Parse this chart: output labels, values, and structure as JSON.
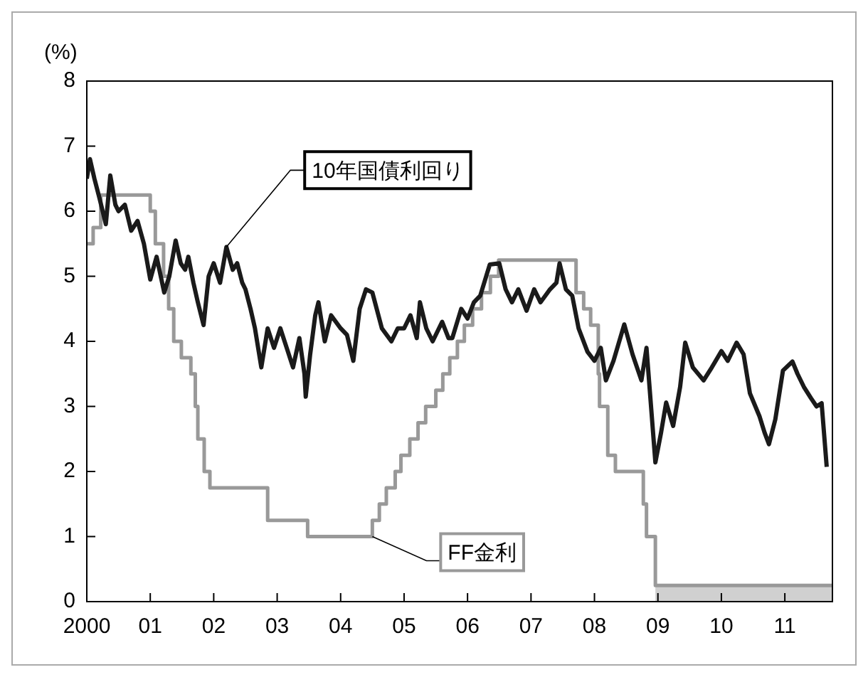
{
  "chart_data": {
    "type": "line",
    "ylabel": "(%)",
    "xlim": [
      2000,
      2011.75
    ],
    "ylim": [
      0,
      8
    ],
    "xticks": [
      {
        "value": 2000,
        "label": "2000"
      },
      {
        "value": 2001,
        "label": "01"
      },
      {
        "value": 2002,
        "label": "02"
      },
      {
        "value": 2003,
        "label": "03"
      },
      {
        "value": 2004,
        "label": "04"
      },
      {
        "value": 2005,
        "label": "05"
      },
      {
        "value": 2006,
        "label": "06"
      },
      {
        "value": 2007,
        "label": "07"
      },
      {
        "value": 2008,
        "label": "08"
      },
      {
        "value": 2009,
        "label": "09"
      },
      {
        "value": 2010,
        "label": "10"
      },
      {
        "value": 2011,
        "label": "11"
      }
    ],
    "yticks": [
      0,
      1,
      2,
      3,
      4,
      5,
      6,
      7,
      8
    ],
    "grid": false,
    "legend": false,
    "annotations": [
      {
        "text": "10年国債利回り",
        "x": 2002.2,
        "y": 5.45
      },
      {
        "text": "FF金利",
        "x": 2004.5,
        "y": 1.0
      }
    ],
    "series": [
      {
        "type": "line",
        "color": "#1a1a1a",
        "x": [
          2000,
          2000.05,
          2000.12,
          2000.2,
          2000.3,
          2000.37,
          2000.45,
          2000.5,
          2000.6,
          2000.7,
          2000.8,
          2000.9,
          2001,
          2001.1,
          2001.22,
          2001.3,
          2001.4,
          2001.48,
          2001.55,
          2001.6,
          2001.68,
          2001.75,
          2001.84,
          2001.92,
          2002,
          2002.1,
          2002.2,
          2002.3,
          2002.37,
          2002.45,
          2002.5,
          2002.58,
          2002.65,
          2002.75,
          2002.85,
          2002.95,
          2003.05,
          2003.15,
          2003.25,
          2003.35,
          2003.43,
          2003.45,
          2003.52,
          2003.6,
          2003.65,
          2003.75,
          2003.85,
          2004,
          2004.1,
          2004.2,
          2004.3,
          2004.4,
          2004.5,
          2004.65,
          2004.8,
          2004.9,
          2005,
          2005.1,
          2005.2,
          2005.25,
          2005.35,
          2005.45,
          2005.6,
          2005.7,
          2005.76,
          2005.9,
          2006,
          2006.1,
          2006.2,
          2006.35,
          2006.5,
          2006.6,
          2006.7,
          2006.8,
          2006.93,
          2007.05,
          2007.15,
          2007.3,
          2007.4,
          2007.45,
          2007.55,
          2007.65,
          2007.75,
          2007.89,
          2008,
          2008.1,
          2008.18,
          2008.3,
          2008.47,
          2008.6,
          2008.74,
          2008.82,
          2008.96,
          2009.05,
          2009.13,
          2009.24,
          2009.35,
          2009.43,
          2009.55,
          2009.72,
          2009.85,
          2010,
          2010.1,
          2010.24,
          2010.35,
          2010.45,
          2010.6,
          2010.68,
          2010.75,
          2010.85,
          2010.97,
          2011.12,
          2011.2,
          2011.3,
          2011.41,
          2011.5,
          2011.58,
          2011.66
        ],
        "values": [
          6.5,
          6.8,
          6.5,
          6.2,
          5.8,
          6.55,
          6.1,
          6.0,
          6.1,
          5.7,
          5.85,
          5.5,
          4.95,
          5.3,
          4.75,
          5.0,
          5.55,
          5.2,
          5.1,
          5.3,
          4.9,
          4.6,
          4.25,
          5.0,
          5.2,
          4.9,
          5.45,
          5.1,
          5.2,
          4.9,
          4.8,
          4.5,
          4.2,
          3.6,
          4.2,
          3.9,
          4.2,
          3.9,
          3.6,
          4.05,
          3.5,
          3.15,
          3.8,
          4.4,
          4.6,
          4.0,
          4.4,
          4.2,
          4.1,
          3.7,
          4.5,
          4.8,
          4.75,
          4.2,
          4.0,
          4.2,
          4.2,
          4.4,
          4.05,
          4.6,
          4.2,
          4.0,
          4.3,
          4.05,
          4.05,
          4.5,
          4.35,
          4.6,
          4.7,
          5.18,
          5.2,
          4.8,
          4.6,
          4.8,
          4.47,
          4.8,
          4.6,
          4.8,
          4.9,
          5.2,
          4.8,
          4.7,
          4.2,
          3.84,
          3.7,
          3.9,
          3.4,
          3.7,
          4.26,
          3.8,
          3.4,
          3.9,
          2.14,
          2.6,
          3.06,
          2.7,
          3.3,
          3.98,
          3.6,
          3.4,
          3.6,
          3.85,
          3.7,
          3.98,
          3.8,
          3.2,
          2.85,
          2.6,
          2.42,
          2.8,
          3.55,
          3.69,
          3.5,
          3.3,
          3.13,
          3.0,
          3.05,
          2.07
        ]
      },
      {
        "type": "step",
        "color": "#999999",
        "x": [
          2000,
          2000.1,
          2000.22,
          2001,
          2001.08,
          2001.21,
          2001.29,
          2001.37,
          2001.49,
          2001.64,
          2001.71,
          2001.75,
          2001.85,
          2001.94,
          2002.85,
          2003.48,
          2004.5,
          2004.61,
          2004.72,
          2004.86,
          2004.95,
          2005.09,
          2005.22,
          2005.34,
          2005.5,
          2005.61,
          2005.72,
          2005.84,
          2005.95,
          2006.08,
          2006.22,
          2006.36,
          2006.49,
          2007.71,
          2007.83,
          2007.94,
          2008.06,
          2008.08,
          2008.21,
          2008.33,
          2008.77,
          2008.82,
          2008.96,
          2011.75
        ],
        "values": [
          5.5,
          5.75,
          6.25,
          6.0,
          5.5,
          5.0,
          4.5,
          4.0,
          3.75,
          3.5,
          3.0,
          2.5,
          2.0,
          1.75,
          1.25,
          1.0,
          1.25,
          1.5,
          1.75,
          2.0,
          2.25,
          2.5,
          2.75,
          3.0,
          3.25,
          3.5,
          3.75,
          4.0,
          4.25,
          4.5,
          4.75,
          5.0,
          5.25,
          4.75,
          4.5,
          4.25,
          3.5,
          3.0,
          2.25,
          2.0,
          1.5,
          1.0,
          0.25,
          0.25
        ],
        "lower": [
          null,
          null,
          null,
          null,
          null,
          null,
          null,
          null,
          null,
          null,
          null,
          null,
          null,
          null,
          null,
          null,
          null,
          null,
          null,
          null,
          null,
          null,
          null,
          null,
          null,
          null,
          null,
          null,
          null,
          null,
          null,
          null,
          null,
          null,
          null,
          null,
          null,
          null,
          null,
          null,
          null,
          null,
          0,
          0
        ],
        "upper": [
          null,
          null,
          null,
          null,
          null,
          null,
          null,
          null,
          null,
          null,
          null,
          null,
          null,
          null,
          null,
          null,
          null,
          null,
          null,
          null,
          null,
          null,
          null,
          null,
          null,
          null,
          null,
          null,
          null,
          null,
          null,
          null,
          null,
          null,
          null,
          null,
          null,
          null,
          null,
          null,
          null,
          null,
          0.25,
          0.25
        ]
      }
    ]
  }
}
